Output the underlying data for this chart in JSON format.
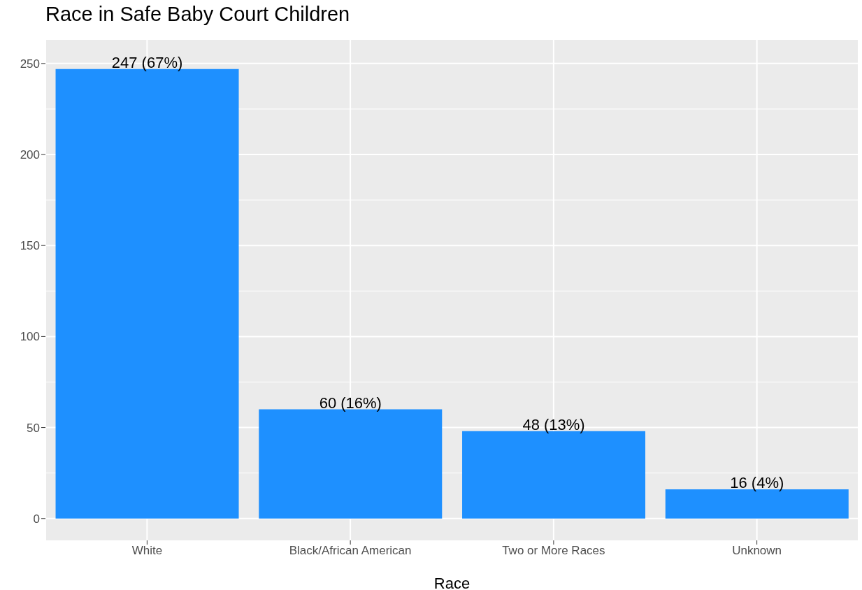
{
  "chart_data": {
    "type": "bar",
    "title": "Race in Safe Baby Court Children",
    "xlabel": "Race",
    "categories": [
      "White",
      "Black/African American",
      "Two or More Races",
      "Unknown"
    ],
    "values": [
      247,
      60,
      48,
      16
    ],
    "color": "#1e90ff",
    "value_labels": [
      "247 (67%)",
      "60 (16%)",
      "48 (13%)",
      "16 (4%)"
    ],
    "ylim": [
      -12,
      263
    ],
    "yticks": [
      0,
      50,
      100,
      150,
      200,
      250
    ],
    "grid": true
  }
}
